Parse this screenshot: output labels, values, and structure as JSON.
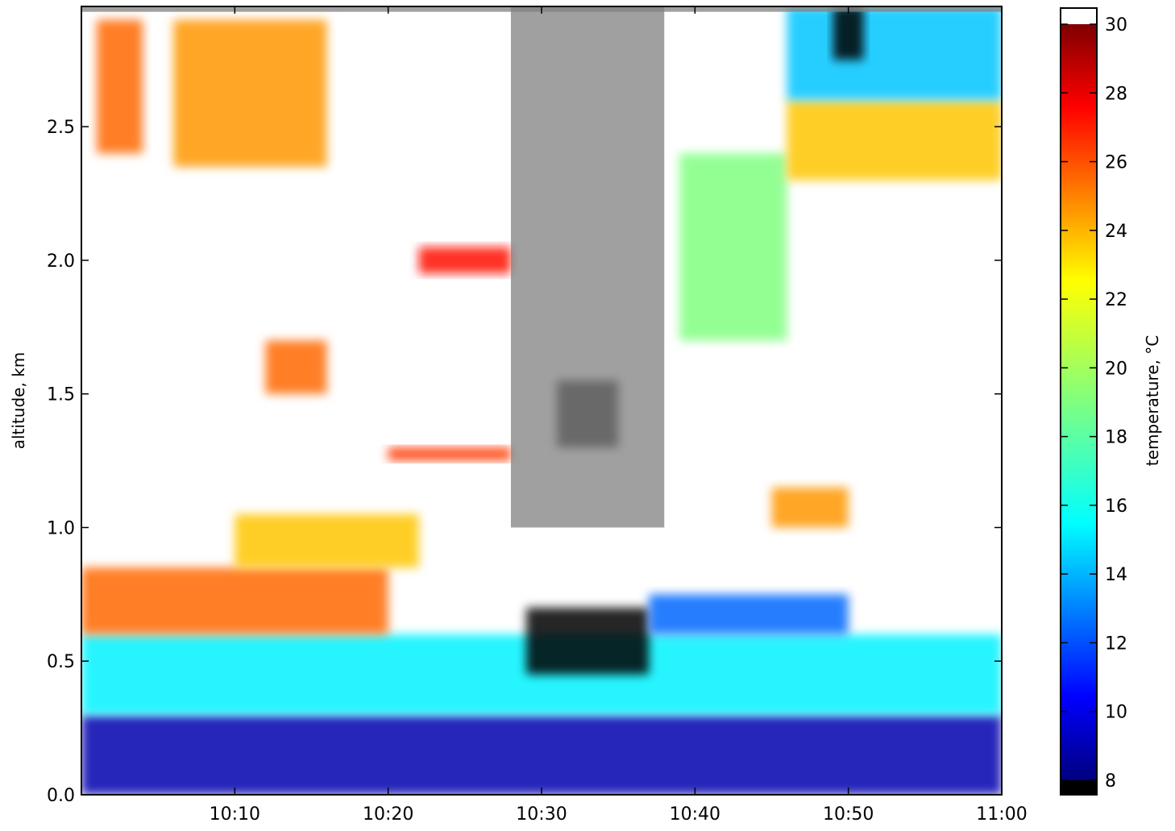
{
  "chart_data": {
    "type": "heatmap",
    "title": "",
    "xlabel": "",
    "ylabel": "altitude, km",
    "x_range": [
      "10:00",
      "11:00"
    ],
    "x_ticks": [
      "10:10",
      "10:20",
      "10:30",
      "10:40",
      "10:50",
      "11:00"
    ],
    "x_tick_minutes": [
      10,
      20,
      30,
      40,
      50,
      60
    ],
    "ylim": [
      0.0,
      2.95
    ],
    "y_ticks": [
      0.0,
      0.5,
      1.0,
      1.5,
      2.0,
      2.5
    ],
    "y_tick_labels": [
      "0.0",
      "0.5",
      "1.0",
      "1.5",
      "2.0",
      "2.5"
    ],
    "colorbar": {
      "label": "temperature, °C",
      "range": [
        7.5,
        30.5
      ],
      "ticks": [
        8,
        10,
        12,
        14,
        16,
        18,
        20,
        22,
        24,
        26,
        28,
        30
      ],
      "tick_labels": [
        "8",
        "10",
        "12",
        "14",
        "16",
        "18",
        "20",
        "22",
        "24",
        "26",
        "28",
        "30"
      ],
      "colormap": "jet",
      "under_color": "#000000",
      "over_color": "#ffffff"
    },
    "no_data_color": "#808080",
    "grid": false,
    "regions": [
      {
        "minutes": [
          0,
          60
        ],
        "altitude_km": [
          0.0,
          0.3
        ],
        "temperature_c": 9
      },
      {
        "minutes": [
          0,
          60
        ],
        "altitude_km": [
          0.3,
          0.6
        ],
        "temperature_c": 16
      },
      {
        "minutes": [
          0,
          20
        ],
        "altitude_km": [
          0.6,
          0.85
        ],
        "temperature_c": 25
      },
      {
        "minutes": [
          10,
          22
        ],
        "altitude_km": [
          0.85,
          1.05
        ],
        "temperature_c": 23
      },
      {
        "minutes": [
          29,
          37
        ],
        "altitude_km": [
          0.45,
          0.7
        ],
        "temperature_c": 7
      },
      {
        "minutes": [
          37,
          50
        ],
        "altitude_km": [
          0.6,
          0.75
        ],
        "temperature_c": 13
      },
      {
        "minutes": [
          45,
          50
        ],
        "altitude_km": [
          1.0,
          1.15
        ],
        "temperature_c": 24
      },
      {
        "minutes": [
          12,
          16
        ],
        "altitude_km": [
          1.5,
          1.7
        ],
        "temperature_c": 25
      },
      {
        "minutes": [
          6,
          16
        ],
        "altitude_km": [
          2.35,
          2.9
        ],
        "temperature_c": 24
      },
      {
        "minutes": [
          1,
          4
        ],
        "altitude_km": [
          2.4,
          2.9
        ],
        "temperature_c": 25
      },
      {
        "minutes": [
          39,
          46
        ],
        "altitude_km": [
          1.7,
          2.4
        ],
        "temperature_c": 19
      },
      {
        "minutes": [
          46,
          60
        ],
        "altitude_km": [
          2.3,
          2.6
        ],
        "temperature_c": 23
      },
      {
        "minutes": [
          46,
          60
        ],
        "altitude_km": [
          2.6,
          2.95
        ],
        "temperature_c": 15
      },
      {
        "minutes": [
          49,
          51
        ],
        "altitude_km": [
          2.75,
          2.95
        ],
        "temperature_c": 7
      },
      {
        "minutes": [
          31,
          35
        ],
        "altitude_km": [
          1.3,
          1.55
        ],
        "temperature_c": 7
      },
      {
        "minutes": [
          20,
          28
        ],
        "altitude_km": [
          1.25,
          1.3
        ],
        "temperature_c": 26
      },
      {
        "minutes": [
          22,
          28
        ],
        "altitude_km": [
          1.95,
          2.05
        ],
        "temperature_c": 27
      }
    ],
    "no_data_regions": [
      {
        "minutes": [
          28,
          38
        ],
        "altitude_km": [
          1.0,
          2.95
        ]
      },
      {
        "minutes": [
          0,
          60
        ],
        "altitude_km": [
          2.93,
          2.95
        ]
      }
    ]
  }
}
